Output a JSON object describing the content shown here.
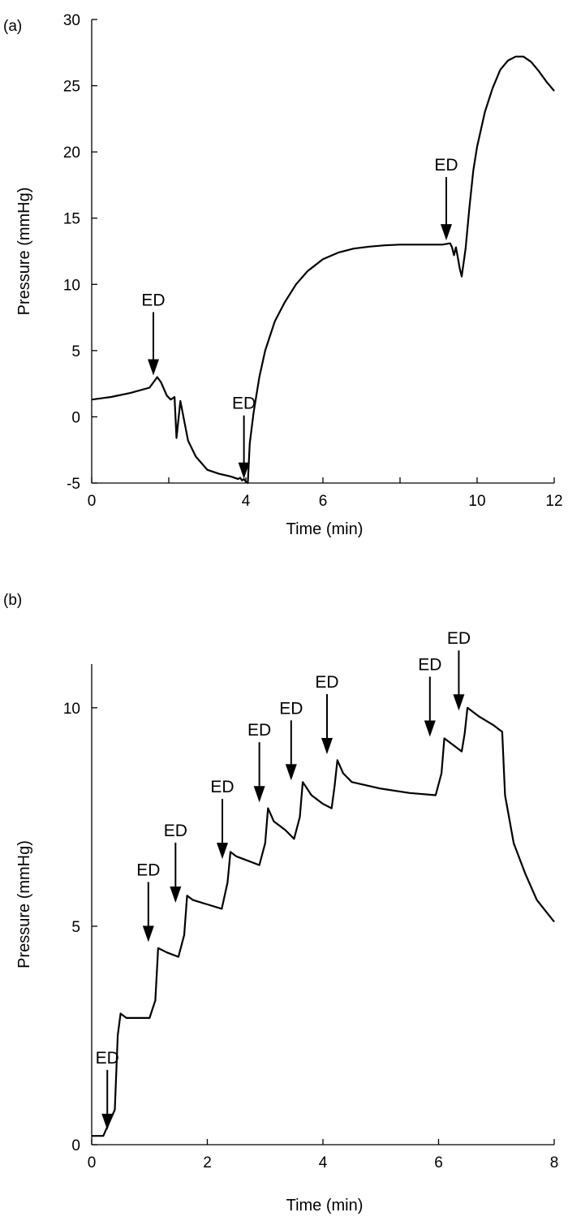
{
  "figure": {
    "ink_color": "#000000",
    "background": "#ffffff"
  },
  "chart_data": [
    {
      "panel_label": "(a)",
      "type": "line",
      "xlabel": "Time (min)",
      "ylabel": "Pressure (mmHg)",
      "xlim": [
        0,
        12
      ],
      "ylim": [
        -5,
        30
      ],
      "x_ticks": [
        0,
        2,
        4,
        6,
        8,
        10,
        12
      ],
      "x_tick_labels": [
        "0",
        "",
        "4",
        "6",
        "",
        "10",
        "12"
      ],
      "y_ticks": [
        -5,
        0,
        5,
        10,
        15,
        20,
        25,
        30
      ],
      "y_tick_labels": [
        "-5",
        "0",
        "5",
        "10",
        "15",
        "20",
        "25",
        "30"
      ],
      "grid": false,
      "series": [
        {
          "x": [
            0,
            0.5,
            1.0,
            1.5,
            1.7,
            1.8,
            1.95,
            2.05,
            2.15,
            2.2,
            2.3,
            2.4,
            2.5,
            2.7,
            3.0,
            3.3,
            3.6,
            3.8,
            3.85,
            3.9,
            3.95,
            4.0,
            4.05,
            4.1,
            4.2,
            4.35,
            4.5,
            4.75,
            5.0,
            5.3,
            5.6,
            6.0,
            6.4,
            6.8,
            7.2,
            7.6,
            8.0,
            8.4,
            8.8,
            9.1,
            9.3,
            9.35,
            9.4,
            9.45,
            9.5,
            9.55,
            9.6,
            9.7,
            9.8,
            9.9,
            10.0,
            10.2,
            10.4,
            10.6,
            10.8,
            11.0,
            11.2,
            11.4,
            11.6,
            11.8,
            12.0
          ],
          "y": [
            1.3,
            1.5,
            1.8,
            2.2,
            3.0,
            2.6,
            1.6,
            1.3,
            1.5,
            -1.6,
            1.2,
            -0.3,
            -1.8,
            -3.0,
            -4.0,
            -4.3,
            -4.5,
            -4.7,
            -4.6,
            -4.8,
            -4.7,
            -4.9,
            -5.0,
            -2.0,
            0.3,
            3.0,
            5.0,
            7.2,
            8.6,
            10.0,
            11.0,
            11.9,
            12.4,
            12.7,
            12.85,
            12.95,
            13.0,
            13.0,
            13.0,
            13.0,
            13.1,
            12.8,
            12.2,
            12.8,
            12.0,
            11.2,
            10.6,
            12.7,
            15.8,
            18.6,
            20.4,
            23.0,
            24.8,
            26.2,
            26.9,
            27.2,
            27.2,
            26.8,
            26.1,
            25.3,
            24.6
          ]
        }
      ],
      "annotations": [
        {
          "text": "ED",
          "x": 1.6,
          "y": 3.0
        },
        {
          "text": "ED",
          "x": 3.95,
          "y": -4.8
        },
        {
          "text": "ED",
          "x": 9.2,
          "y": 13.2
        }
      ]
    },
    {
      "panel_label": "(b)",
      "type": "line",
      "xlabel": "Time (min)",
      "ylabel": "Pressure (mmHg)",
      "xlim": [
        0,
        8
      ],
      "ylim": [
        0,
        11
      ],
      "x_ticks": [
        0,
        2,
        4,
        6,
        8
      ],
      "x_tick_labels": [
        "0",
        "2",
        "4",
        "6",
        "8"
      ],
      "y_ticks": [
        0,
        5,
        10
      ],
      "y_tick_labels": [
        "0",
        "5",
        "10"
      ],
      "grid": false,
      "series": [
        {
          "x": [
            0,
            0.2,
            0.4,
            0.45,
            0.5,
            0.6,
            0.8,
            1.0,
            1.1,
            1.15,
            1.3,
            1.5,
            1.6,
            1.65,
            1.75,
            2.0,
            2.25,
            2.35,
            2.4,
            2.5,
            2.7,
            2.9,
            3.0,
            3.05,
            3.15,
            3.35,
            3.5,
            3.6,
            3.65,
            3.8,
            4.0,
            4.15,
            4.2,
            4.25,
            4.35,
            4.5,
            5.0,
            5.5,
            5.95,
            6.05,
            6.1,
            6.3,
            6.4,
            6.45,
            6.5,
            6.7,
            6.95,
            7.05,
            7.1,
            7.15,
            7.3,
            7.5,
            7.7,
            8.0
          ],
          "y": [
            0.2,
            0.2,
            0.8,
            2.5,
            3.0,
            2.9,
            2.9,
            2.9,
            3.3,
            4.5,
            4.4,
            4.3,
            4.8,
            5.7,
            5.6,
            5.5,
            5.4,
            6.0,
            6.7,
            6.6,
            6.5,
            6.4,
            6.9,
            7.7,
            7.4,
            7.2,
            7.0,
            7.5,
            8.3,
            8.0,
            7.8,
            7.7,
            8.2,
            8.8,
            8.5,
            8.3,
            8.15,
            8.05,
            8.0,
            8.5,
            9.3,
            9.1,
            9.0,
            9.4,
            10.0,
            9.8,
            9.6,
            9.5,
            9.45,
            8.0,
            6.9,
            6.2,
            5.6,
            5.1
          ]
        }
      ],
      "annotations": [
        {
          "text": "ED",
          "x": 0.27,
          "y": 0.3
        },
        {
          "text": "ED",
          "x": 0.98,
          "y": 4.6
        },
        {
          "text": "ED",
          "x": 1.45,
          "y": 5.5
        },
        {
          "text": "ED",
          "x": 2.26,
          "y": 6.5
        },
        {
          "text": "ED",
          "x": 2.9,
          "y": 7.8
        },
        {
          "text": "ED",
          "x": 3.45,
          "y": 8.3
        },
        {
          "text": "ED",
          "x": 4.07,
          "y": 8.9
        },
        {
          "text": "ED",
          "x": 5.85,
          "y": 9.3
        },
        {
          "text": "ED",
          "x": 6.35,
          "y": 9.9
        }
      ]
    }
  ]
}
